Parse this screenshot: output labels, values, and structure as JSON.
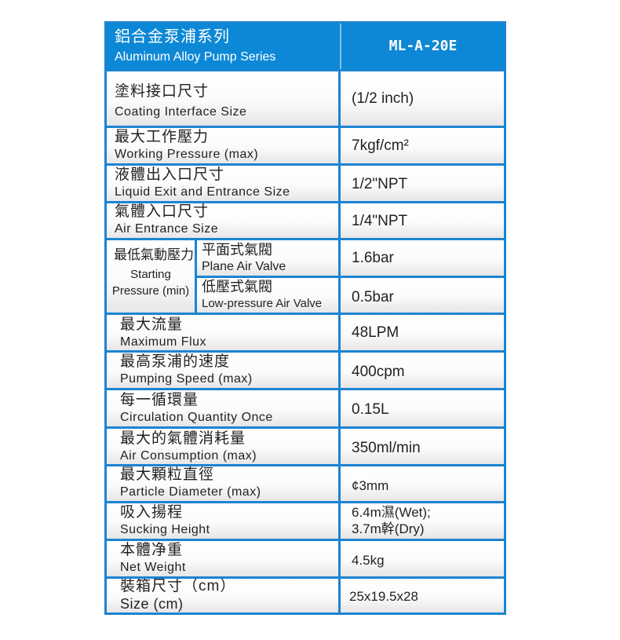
{
  "header": {
    "title_cn": "鋁合金泵浦系列",
    "title_en": "Aluminum Alloy Pump Series",
    "model": "ML-A-20E"
  },
  "rows": [
    {
      "cn": "塗料接口尺寸",
      "en": "Coating Interface Size",
      "value": "(1/2 inch)"
    },
    {
      "cn": "最大工作壓力",
      "en": "Working Pressure (max)",
      "value": "7kgf/cm²"
    },
    {
      "cn": "液體出入口尺寸",
      "en": "Liquid Exit and Entrance Size",
      "value": "1/2\"NPT"
    },
    {
      "cn": "氣體入口尺寸",
      "en": "Air Entrance Size",
      "value": "1/4\"NPT"
    },
    {
      "cn": "最大流量",
      "en": "Maximum Flux",
      "value": "48LPM"
    },
    {
      "cn": "最高泵浦的速度",
      "en": "Pumping Speed (max)",
      "value": "400cpm"
    },
    {
      "cn": "每一循環量",
      "en": "Circulation Quantity Once",
      "value": "0.15L"
    },
    {
      "cn": "最大的氣體消耗量",
      "en": "Air Consumption (max)",
      "value": "350ml/min"
    },
    {
      "cn": "最大顆粒直徑",
      "en": "Particle Diameter (max)",
      "value": "¢3mm"
    },
    {
      "cn": "吸入揚程",
      "en": "Sucking Height",
      "value": "6.4m濕(Wet);",
      "value2": "3.7m幹(Dry)"
    },
    {
      "cn": "本體净重",
      "en": "Net Weight",
      "value": "4.5kg"
    },
    {
      "cn": "裝箱尺寸（cm）",
      "en": "Size (cm)",
      "value": "25x19.5x28"
    }
  ],
  "starting_pressure": {
    "cn": "最低氣動壓力",
    "en_line1": "Starting",
    "en_line2": "Pressure (min)",
    "plane": {
      "cn": "平面式氣閥",
      "en": "Plane Air Valve",
      "value": "1.6bar"
    },
    "low": {
      "cn": "低壓式氣閥",
      "en": "Low-pressure Air Valve",
      "value": "0.5bar"
    }
  },
  "colors": {
    "header": "#0d88d6",
    "border": "#1c84d2"
  }
}
